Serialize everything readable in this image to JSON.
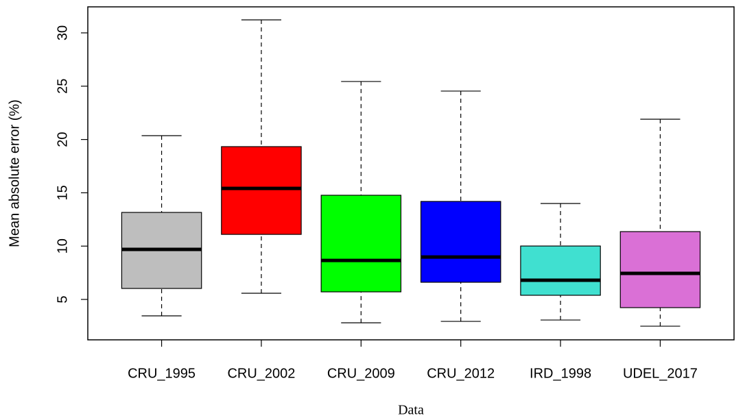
{
  "chart_data": {
    "type": "boxplot",
    "x_label": "Data",
    "y_label": "Mean absolute error (%)",
    "categories": [
      "CRU_1995",
      "CRU_2002",
      "CRU_2009",
      "CRU_2012",
      "IRD_1998",
      "UDEL_2017"
    ],
    "colors": [
      "#bebebe",
      "#ff0000",
      "#00ff00",
      "#0000ff",
      "#40e0d0",
      "#da70d6"
    ],
    "min": [
      3.46,
      5.58,
      2.81,
      2.94,
      3.07,
      2.49
    ],
    "q1": [
      6.03,
      11.1,
      5.71,
      6.61,
      5.39,
      4.23
    ],
    "median": [
      9.69,
      15.41,
      8.66,
      8.98,
      6.8,
      7.44
    ],
    "q3": [
      13.16,
      19.33,
      14.77,
      14.19,
      10.01,
      11.36
    ],
    "max": [
      20.36,
      31.22,
      25.44,
      24.54,
      14.0,
      21.9
    ],
    "ylim": [
      1.21,
      32.44
    ],
    "yticks": [
      5,
      10,
      15,
      20,
      25,
      30
    ]
  }
}
